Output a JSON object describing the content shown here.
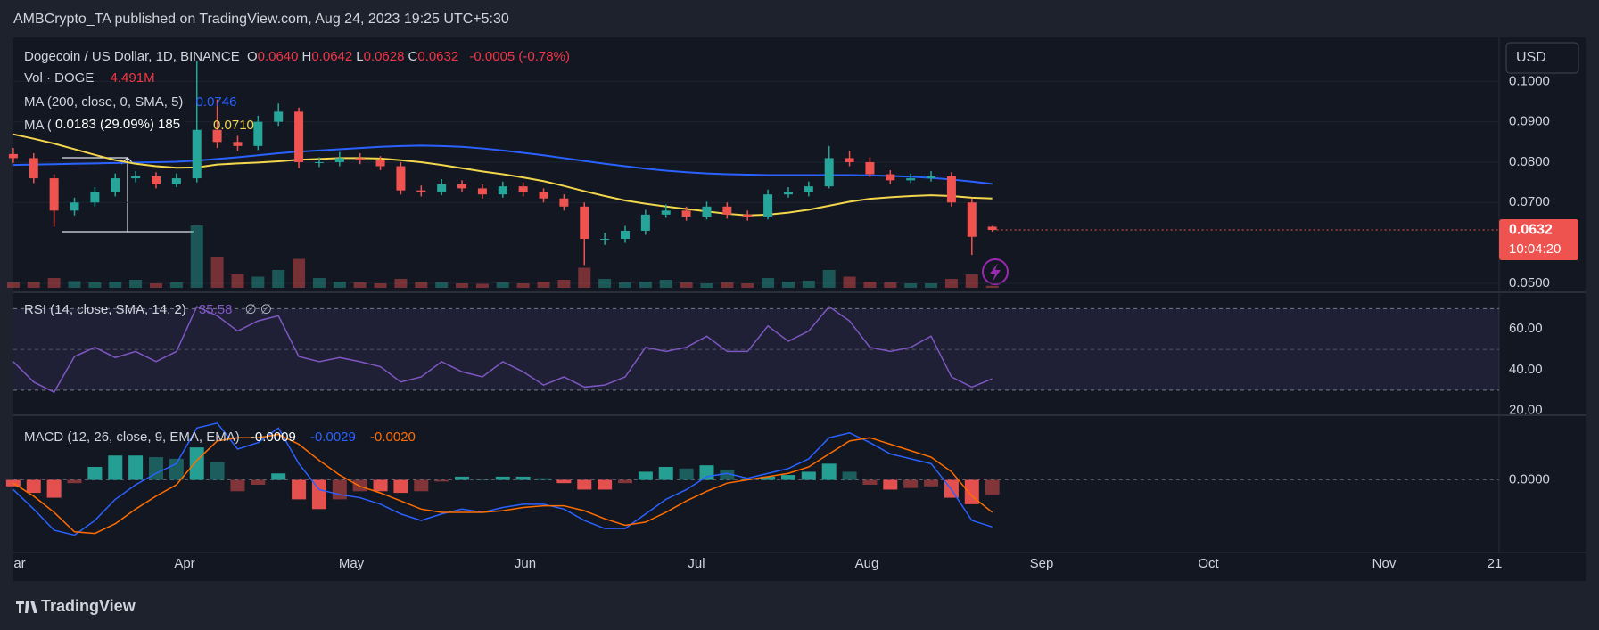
{
  "header": {
    "publisher": "AMBCrypto_TA published on TradingView.com, Aug 24, 2023 19:25 UTC+5:30"
  },
  "currency": "USD",
  "time_axis": [
    "ar",
    "Apr",
    "May",
    "Jun",
    "Jul",
    "Aug",
    "Sep",
    "Oct",
    "Nov",
    "21"
  ],
  "footer": {
    "brand": "TradingView"
  },
  "chart_data": [
    {
      "type": "candlestick",
      "title": "Dogecoin / US Dollar, 1D, BINANCE",
      "ohlc_keys": [
        "O",
        "H",
        "L",
        "C"
      ],
      "ohlc_labels": [
        "0.0640",
        "0.0642",
        "0.0628",
        "0.0632"
      ],
      "change": "-0.0005 (-0.78%)",
      "open": [
        0.082,
        0.081,
        0.076,
        0.068,
        0.07,
        0.0725,
        0.076,
        0.0765,
        0.0745,
        0.076,
        0.088,
        0.085,
        0.084,
        0.09,
        0.0925,
        0.08,
        0.08,
        0.081,
        0.0805,
        0.079,
        0.073,
        0.0725,
        0.0745,
        0.0735,
        0.072,
        0.074,
        0.0725,
        0.071,
        0.069,
        0.061,
        0.061,
        0.063,
        0.067,
        0.068,
        0.0665,
        0.069,
        0.067,
        0.0665,
        0.072,
        0.0725,
        0.074,
        0.081,
        0.08,
        0.077,
        0.0755,
        0.076,
        0.0765,
        0.07,
        0.064
      ],
      "high": [
        0.0835,
        0.0822,
        0.077,
        0.0712,
        0.0738,
        0.0772,
        0.0778,
        0.0775,
        0.0772,
        0.105,
        0.0955,
        0.0865,
        0.0915,
        0.0945,
        0.0935,
        0.0812,
        0.0825,
        0.0822,
        0.0815,
        0.08,
        0.0742,
        0.0758,
        0.0755,
        0.0745,
        0.0752,
        0.075,
        0.0735,
        0.072,
        0.07,
        0.0625,
        0.0642,
        0.0682,
        0.0695,
        0.069,
        0.0702,
        0.07,
        0.068,
        0.0732,
        0.0738,
        0.0752,
        0.084,
        0.0828,
        0.0812,
        0.078,
        0.0772,
        0.0778,
        0.0775,
        0.071,
        0.0642
      ],
      "low": [
        0.0798,
        0.0748,
        0.064,
        0.0668,
        0.069,
        0.0715,
        0.075,
        0.0735,
        0.0738,
        0.075,
        0.0835,
        0.0828,
        0.083,
        0.089,
        0.0785,
        0.0788,
        0.079,
        0.0795,
        0.078,
        0.072,
        0.0715,
        0.0718,
        0.0725,
        0.071,
        0.0712,
        0.0715,
        0.07,
        0.068,
        0.0545,
        0.0595,
        0.06,
        0.062,
        0.0662,
        0.0655,
        0.0658,
        0.066,
        0.0655,
        0.0658,
        0.0712,
        0.0715,
        0.0735,
        0.079,
        0.0762,
        0.0745,
        0.0748,
        0.0752,
        0.069,
        0.057,
        0.0628
      ],
      "close": [
        0.081,
        0.076,
        0.068,
        0.07,
        0.0725,
        0.076,
        0.0765,
        0.0745,
        0.076,
        0.088,
        0.085,
        0.084,
        0.09,
        0.0925,
        0.08,
        0.08,
        0.081,
        0.0805,
        0.079,
        0.073,
        0.0725,
        0.0745,
        0.0735,
        0.072,
        0.074,
        0.0725,
        0.071,
        0.069,
        0.061,
        0.061,
        0.063,
        0.067,
        0.068,
        0.0665,
        0.069,
        0.067,
        0.0665,
        0.072,
        0.0725,
        0.074,
        0.081,
        0.08,
        0.077,
        0.0755,
        0.076,
        0.0765,
        0.07,
        0.0615,
        0.0632
      ],
      "up_color": "#26a69a",
      "down_color": "#ef5350",
      "ylim": [
        0.0482,
        0.1109
      ],
      "yticks": [
        {
          "value": 0.1,
          "label": "0.1000"
        },
        {
          "value": 0.09,
          "label": "0.0900"
        },
        {
          "value": 0.08,
          "label": "0.0800"
        },
        {
          "value": 0.07,
          "label": "0.0700"
        },
        {
          "value": 0.05,
          "label": "0.0500"
        }
      ],
      "last_price_label": "0.0632",
      "countdown": "10:04:20",
      "volume": {
        "name": "Vol · DOGE",
        "value_label": "4.491M",
        "ylim": [
          0,
          200
        ],
        "values": [
          12,
          14,
          22,
          15,
          12,
          14,
          18,
          10,
          12,
          140,
          70,
          30,
          25,
          40,
          65,
          22,
          14,
          12,
          10,
          20,
          14,
          12,
          10,
          9,
          12,
          10,
          14,
          18,
          45,
          20,
          12,
          14,
          18,
          12,
          10,
          12,
          10,
          22,
          14,
          16,
          40,
          25,
          14,
          12,
          10,
          10,
          20,
          30,
          4.491
        ]
      },
      "series": [
        {
          "name": "MA (200, close, 0, SMA, 5)",
          "value_label": "0.0746",
          "color": "#2962ff",
          "values": [
            0.0793,
            0.0794,
            0.0795,
            0.0796,
            0.0797,
            0.0798,
            0.0799,
            0.08,
            0.0801,
            0.0804,
            0.0808,
            0.0812,
            0.0817,
            0.0822,
            0.0826,
            0.0829,
            0.0832,
            0.0835,
            0.0838,
            0.084,
            0.0841,
            0.084,
            0.0838,
            0.0834,
            0.0829,
            0.0823,
            0.0817,
            0.081,
            0.0803,
            0.0796,
            0.079,
            0.0784,
            0.0779,
            0.0775,
            0.0772,
            0.077,
            0.0769,
            0.0768,
            0.0768,
            0.0768,
            0.0768,
            0.0768,
            0.0767,
            0.0766,
            0.0764,
            0.0761,
            0.0757,
            0.0752,
            0.0746
          ]
        },
        {
          "name": "MA (",
          "value_label": "0.0710",
          "color": "#f2d64b",
          "values": [
            0.0869,
            0.0858,
            0.0846,
            0.0832,
            0.0818,
            0.0805,
            0.0796,
            0.079,
            0.0786,
            0.0787,
            0.0794,
            0.0797,
            0.0799,
            0.0802,
            0.0806,
            0.0808,
            0.081,
            0.081,
            0.0809,
            0.0805,
            0.08,
            0.0793,
            0.0785,
            0.0777,
            0.077,
            0.0762,
            0.0753,
            0.0741,
            0.0728,
            0.0716,
            0.0705,
            0.0697,
            0.069,
            0.0684,
            0.0678,
            0.0672,
            0.0668,
            0.067,
            0.0675,
            0.0682,
            0.0692,
            0.0702,
            0.0709,
            0.0713,
            0.0716,
            0.0718,
            0.0716,
            0.0712,
            0.071
          ]
        }
      ],
      "measure": "0.0183 (29.09%) 185"
    },
    {
      "type": "line",
      "title": "RSI (14, close, SMA, 14, 2)",
      "value_label": "35.58",
      "extra": "∅ ∅",
      "color": "#7e57c2",
      "values": [
        44,
        34,
        29,
        46.5,
        51,
        46,
        49,
        44,
        49,
        71,
        66.5,
        59,
        64,
        66.5,
        46.5,
        44,
        46,
        44,
        41.5,
        34,
        36.5,
        44,
        39,
        36.5,
        44,
        39,
        32.5,
        36.5,
        31.5,
        32.5,
        36.5,
        51,
        49,
        51,
        56.5,
        49,
        49,
        61.5,
        54,
        59,
        71,
        64,
        51,
        49,
        51,
        56.5,
        36.5,
        31.5,
        35.58
      ],
      "ylim": [
        19,
        76.3
      ],
      "yticks": [
        {
          "value": 60,
          "label": "60.00"
        },
        {
          "value": 40,
          "label": "40.00"
        },
        {
          "value": 20,
          "label": "20.00"
        }
      ],
      "band": [
        30,
        70
      ],
      "midline": 50
    },
    {
      "type": "macd",
      "title": "MACD (12, 26, close, 9, EMA, EMA)",
      "histogram": {
        "value_label": "-0.0009",
        "up_color": "#26a69a",
        "down_color": "#ef5350",
        "values": [
          -0.0004,
          -0.0008,
          -0.0011,
          -0.0002,
          0.0008,
          0.0015,
          0.0015,
          0.0014,
          0.0013,
          0.002,
          0.0011,
          -0.0007,
          -0.0003,
          0.0004,
          -0.0012,
          -0.0018,
          -0.0012,
          -0.0007,
          -0.0007,
          -0.0008,
          -0.0007,
          -0.0001,
          0.0002,
          0.0,
          0.0002,
          0.0002,
          0.0001,
          -0.0002,
          -0.0006,
          -0.0006,
          -0.0002,
          0.0005,
          0.0008,
          0.0007,
          0.0009,
          0.0006,
          0.0001,
          0.0002,
          0.0003,
          0.0005,
          0.001,
          0.0005,
          -0.0003,
          -0.0006,
          -0.0005,
          -0.0004,
          -0.0011,
          -0.0015,
          -0.0009
        ]
      },
      "macd": {
        "value_label": "-0.0029",
        "color": "#2962ff",
        "values": [
          -0.0006,
          -0.0018,
          -0.0031,
          -0.0034,
          -0.0025,
          -0.0012,
          -0.0003,
          0.0004,
          0.001,
          0.0032,
          0.0035,
          0.0019,
          0.0023,
          0.0032,
          0.001,
          -0.0006,
          -0.0009,
          -0.0011,
          -0.0015,
          -0.0021,
          -0.0025,
          -0.0021,
          -0.0018,
          -0.002,
          -0.0017,
          -0.0015,
          -0.0015,
          -0.0018,
          -0.0025,
          -0.003,
          -0.003,
          -0.0021,
          -0.0012,
          -0.0006,
          0.0002,
          0.0004,
          0.0001,
          0.0004,
          0.0007,
          0.0013,
          0.0026,
          0.0029,
          0.0023,
          0.0016,
          0.0013,
          0.001,
          -0.0006,
          -0.0025,
          -0.0029
        ]
      },
      "signal": {
        "value_label": "-0.0020",
        "color": "#ff6d00",
        "values": [
          -0.0002,
          -0.001,
          -0.002,
          -0.0032,
          -0.0033,
          -0.0027,
          -0.0018,
          -0.001,
          -0.0003,
          0.0012,
          0.0024,
          0.0026,
          0.0026,
          0.0028,
          0.0022,
          0.0012,
          0.0003,
          -0.0004,
          -0.0008,
          -0.0013,
          -0.0018,
          -0.002,
          -0.002,
          -0.002,
          -0.0019,
          -0.0017,
          -0.0016,
          -0.0016,
          -0.0019,
          -0.0024,
          -0.0028,
          -0.0026,
          -0.002,
          -0.0013,
          -0.0007,
          -0.0002,
          0.0,
          0.0002,
          0.0004,
          0.0008,
          0.0016,
          0.0024,
          0.0026,
          0.0022,
          0.0018,
          0.0014,
          0.0005,
          -0.001,
          -0.002
        ]
      },
      "ylim": [
        -0.00431,
        0.00382
      ],
      "yticks": [
        {
          "value": 0,
          "label": "0.0000"
        }
      ]
    }
  ]
}
